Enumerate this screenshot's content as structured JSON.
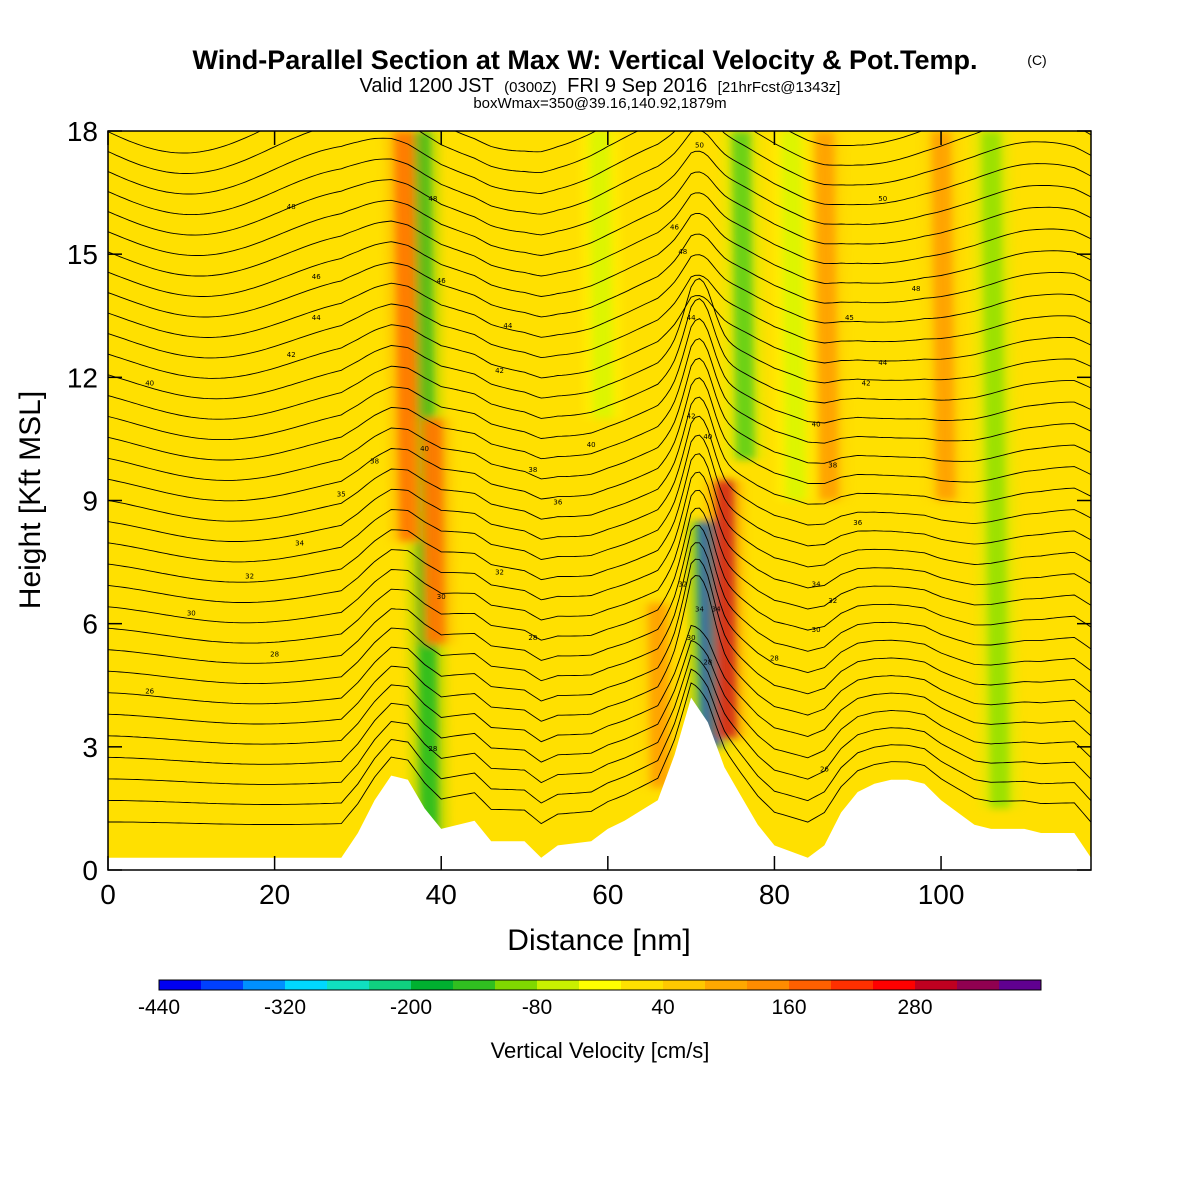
{
  "header": {
    "title": "Wind-Parallel Section at Max W: Vertical Velocity & Pot.Temp.",
    "copyright_mark": "(C)",
    "valid_prefix": "Valid 1200 JST",
    "valid_utc": "(0300Z)",
    "valid_date": "FRI 9 Sep 2016",
    "forecast_info": "[21hrFcst@1343z]",
    "box_info": "boxWmax=350@39.16,140.92,1879m"
  },
  "chart_data": {
    "type": "heatmap",
    "xlabel": "Distance [nm]",
    "ylabel": "Height [Kft MSL]",
    "xlim": [
      0,
      118
    ],
    "ylim": [
      0,
      18
    ],
    "xticks": [
      0,
      20,
      40,
      60,
      80,
      100
    ],
    "yticks": [
      0,
      3,
      6,
      9,
      12,
      15,
      18
    ],
    "grid": false,
    "colorbar": {
      "label": "Vertical Velocity [cm/s]",
      "placement": "bottom",
      "tick_labels": [
        "-440",
        "-320",
        "-200",
        "-80",
        "40",
        "160",
        "280"
      ],
      "tick_values": [
        -440,
        -320,
        -200,
        -80,
        40,
        160,
        280
      ],
      "levels": [
        -440,
        -400,
        -360,
        -320,
        -280,
        -240,
        -200,
        -160,
        -120,
        -80,
        -40,
        0,
        40,
        80,
        120,
        160,
        200,
        240,
        280,
        320,
        360
      ],
      "colors": [
        "#0000f0",
        "#0040ff",
        "#0090ff",
        "#00d8ff",
        "#10e0c0",
        "#10d080",
        "#00b030",
        "#30c020",
        "#80d800",
        "#c8f000",
        "#ffff00",
        "#ffe000",
        "#ffc800",
        "#ffa800",
        "#ff8c00",
        "#ff6000",
        "#ff3000",
        "#ff0000",
        "#c00020",
        "#900050",
        "#600090"
      ]
    },
    "terrain": {
      "x": [
        0,
        28,
        30,
        32,
        34,
        36,
        38,
        40,
        44,
        46,
        50,
        52,
        54,
        58,
        60,
        62,
        66,
        68,
        70,
        72,
        74,
        76,
        78,
        80,
        84,
        86,
        88,
        90,
        92,
        94,
        96,
        98,
        100,
        104,
        106,
        110,
        112,
        116,
        118
      ],
      "height": [
        0.3,
        0.3,
        0.9,
        1.7,
        2.3,
        2.2,
        1.5,
        1.0,
        1.2,
        0.7,
        0.7,
        0.3,
        0.6,
        0.7,
        1.0,
        1.2,
        1.7,
        2.8,
        4.2,
        3.6,
        2.5,
        1.8,
        1.1,
        0.6,
        0.3,
        0.6,
        1.4,
        1.9,
        2.1,
        2.2,
        2.2,
        2.1,
        1.7,
        1.1,
        1.0,
        1.0,
        0.9,
        0.9,
        0.3
      ]
    },
    "vertical_velocity_features": [
      {
        "x": 37.5,
        "y0": 0.8,
        "y1": 18,
        "w": -180
      },
      {
        "x": 35.5,
        "y0": 8,
        "y1": 18,
        "w": 160
      },
      {
        "x": 39,
        "y0": 5.5,
        "y1": 11,
        "w": 160
      },
      {
        "x": 72,
        "y0": 3,
        "y1": 8.5,
        "w": -380
      },
      {
        "x": 74,
        "y0": 3.2,
        "y1": 9.5,
        "w": 300
      },
      {
        "x": 76,
        "y0": 10,
        "y1": 18,
        "w": -160
      },
      {
        "x": 66,
        "y0": 2,
        "y1": 6.5,
        "w": 120
      },
      {
        "x": 86,
        "y0": 9,
        "y1": 18,
        "w": 140
      },
      {
        "x": 100,
        "y0": 9,
        "y1": 18,
        "w": 140
      },
      {
        "x": 106,
        "y0": 1.5,
        "y1": 18,
        "w": -120
      },
      {
        "x": 82,
        "y0": 9,
        "y1": 18,
        "w": -80
      },
      {
        "x": 59,
        "y0": 11,
        "y1": 18,
        "w": -80
      }
    ],
    "theta_contour_labels": [
      {
        "x": 5,
        "y": 4.3,
        "text": "26"
      },
      {
        "x": 20,
        "y": 5.2,
        "text": "28"
      },
      {
        "x": 10,
        "y": 6.2,
        "text": "30"
      },
      {
        "x": 17,
        "y": 7.1,
        "text": "32"
      },
      {
        "x": 23,
        "y": 7.9,
        "text": "34"
      },
      {
        "x": 28,
        "y": 9.1,
        "text": "35"
      },
      {
        "x": 32,
        "y": 9.9,
        "text": "38"
      },
      {
        "x": 5,
        "y": 11.8,
        "text": "40"
      },
      {
        "x": 22,
        "y": 12.5,
        "text": "42"
      },
      {
        "x": 25,
        "y": 13.4,
        "text": "44"
      },
      {
        "x": 25,
        "y": 14.4,
        "text": "46"
      },
      {
        "x": 22,
        "y": 16.1,
        "text": "48"
      },
      {
        "x": 38,
        "y": 10.2,
        "text": "40"
      },
      {
        "x": 40,
        "y": 6.6,
        "text": "30"
      },
      {
        "x": 39,
        "y": 2.9,
        "text": "28"
      },
      {
        "x": 40,
        "y": 14.3,
        "text": "46"
      },
      {
        "x": 39,
        "y": 16.3,
        "text": "48"
      },
      {
        "x": 47,
        "y": 7.2,
        "text": "32"
      },
      {
        "x": 51,
        "y": 5.6,
        "text": "28"
      },
      {
        "x": 51,
        "y": 9.7,
        "text": "38"
      },
      {
        "x": 54,
        "y": 8.9,
        "text": "36"
      },
      {
        "x": 58,
        "y": 10.3,
        "text": "40"
      },
      {
        "x": 48,
        "y": 13.2,
        "text": "44"
      },
      {
        "x": 47,
        "y": 12.1,
        "text": "42"
      },
      {
        "x": 68,
        "y": 15.6,
        "text": "46"
      },
      {
        "x": 69,
        "y": 15.0,
        "text": "48"
      },
      {
        "x": 70,
        "y": 13.4,
        "text": "44"
      },
      {
        "x": 70,
        "y": 11.0,
        "text": "42"
      },
      {
        "x": 72,
        "y": 10.5,
        "text": "40"
      },
      {
        "x": 71,
        "y": 17.6,
        "text": "50"
      },
      {
        "x": 69,
        "y": 6.9,
        "text": "32"
      },
      {
        "x": 71,
        "y": 6.3,
        "text": "34"
      },
      {
        "x": 73,
        "y": 6.3,
        "text": "34"
      },
      {
        "x": 70,
        "y": 5.6,
        "text": "30"
      },
      {
        "x": 72,
        "y": 5.0,
        "text": "28"
      },
      {
        "x": 80,
        "y": 5.1,
        "text": "28"
      },
      {
        "x": 85,
        "y": 5.8,
        "text": "30"
      },
      {
        "x": 87,
        "y": 6.5,
        "text": "32"
      },
      {
        "x": 85,
        "y": 6.9,
        "text": "34"
      },
      {
        "x": 90,
        "y": 8.4,
        "text": "36"
      },
      {
        "x": 87,
        "y": 9.8,
        "text": "38"
      },
      {
        "x": 85,
        "y": 10.8,
        "text": "40"
      },
      {
        "x": 91,
        "y": 11.8,
        "text": "42"
      },
      {
        "x": 93,
        "y": 12.3,
        "text": "44"
      },
      {
        "x": 89,
        "y": 13.4,
        "text": "45"
      },
      {
        "x": 97,
        "y": 14.1,
        "text": "48"
      },
      {
        "x": 93,
        "y": 16.3,
        "text": "50"
      },
      {
        "x": 86,
        "y": 2.4,
        "text": "26"
      }
    ]
  }
}
